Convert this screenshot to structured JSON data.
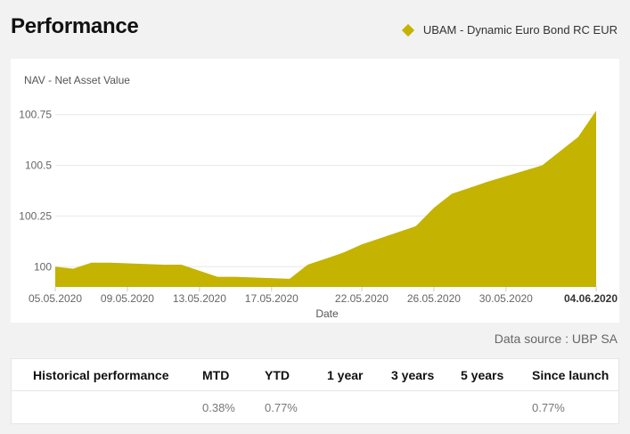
{
  "header": {
    "title": "Performance"
  },
  "legend": {
    "label": "UBAM - Dynamic Euro Bond RC EUR",
    "color": "#c4b300"
  },
  "chart_data": {
    "type": "area",
    "title": "NAV - Net Asset Value",
    "xlabel": "Date",
    "ylabel": "",
    "color": "#c4b300",
    "x_ticks": [
      "05.05.2020",
      "09.05.2020",
      "13.05.2020",
      "17.05.2020",
      "22.05.2020",
      "26.05.2020",
      "30.05.2020",
      "04.06.2020"
    ],
    "y_ticks": [
      "100",
      "100.25",
      "100.5",
      "100.75"
    ],
    "ylim": [
      99.9,
      100.85
    ],
    "x": [
      "05.05.2020",
      "06.05.2020",
      "07.05.2020",
      "08.05.2020",
      "11.05.2020",
      "12.05.2020",
      "14.05.2020",
      "15.05.2020",
      "18.05.2020",
      "19.05.2020",
      "20.05.2020",
      "21.05.2020",
      "22.05.2020",
      "25.05.2020",
      "26.05.2020",
      "27.05.2020",
      "28.05.2020",
      "29.05.2020",
      "01.06.2020",
      "02.06.2020",
      "03.06.2020",
      "04.06.2020"
    ],
    "values": [
      100.0,
      99.99,
      100.02,
      100.02,
      100.01,
      100.01,
      99.95,
      99.95,
      99.94,
      100.01,
      100.04,
      100.07,
      100.11,
      100.2,
      100.29,
      100.36,
      100.39,
      100.42,
      100.5,
      100.57,
      100.64,
      100.77
    ],
    "last_label": "04.06.2020"
  },
  "data_source": "Data source : UBP SA",
  "performance": {
    "headers": [
      "Historical performance",
      "MTD",
      "YTD",
      "1 year",
      "3 years",
      "5 years",
      "Since launch"
    ],
    "values": [
      "",
      "0.38%",
      "0.77%",
      "",
      "",
      "",
      "0.77%"
    ]
  }
}
